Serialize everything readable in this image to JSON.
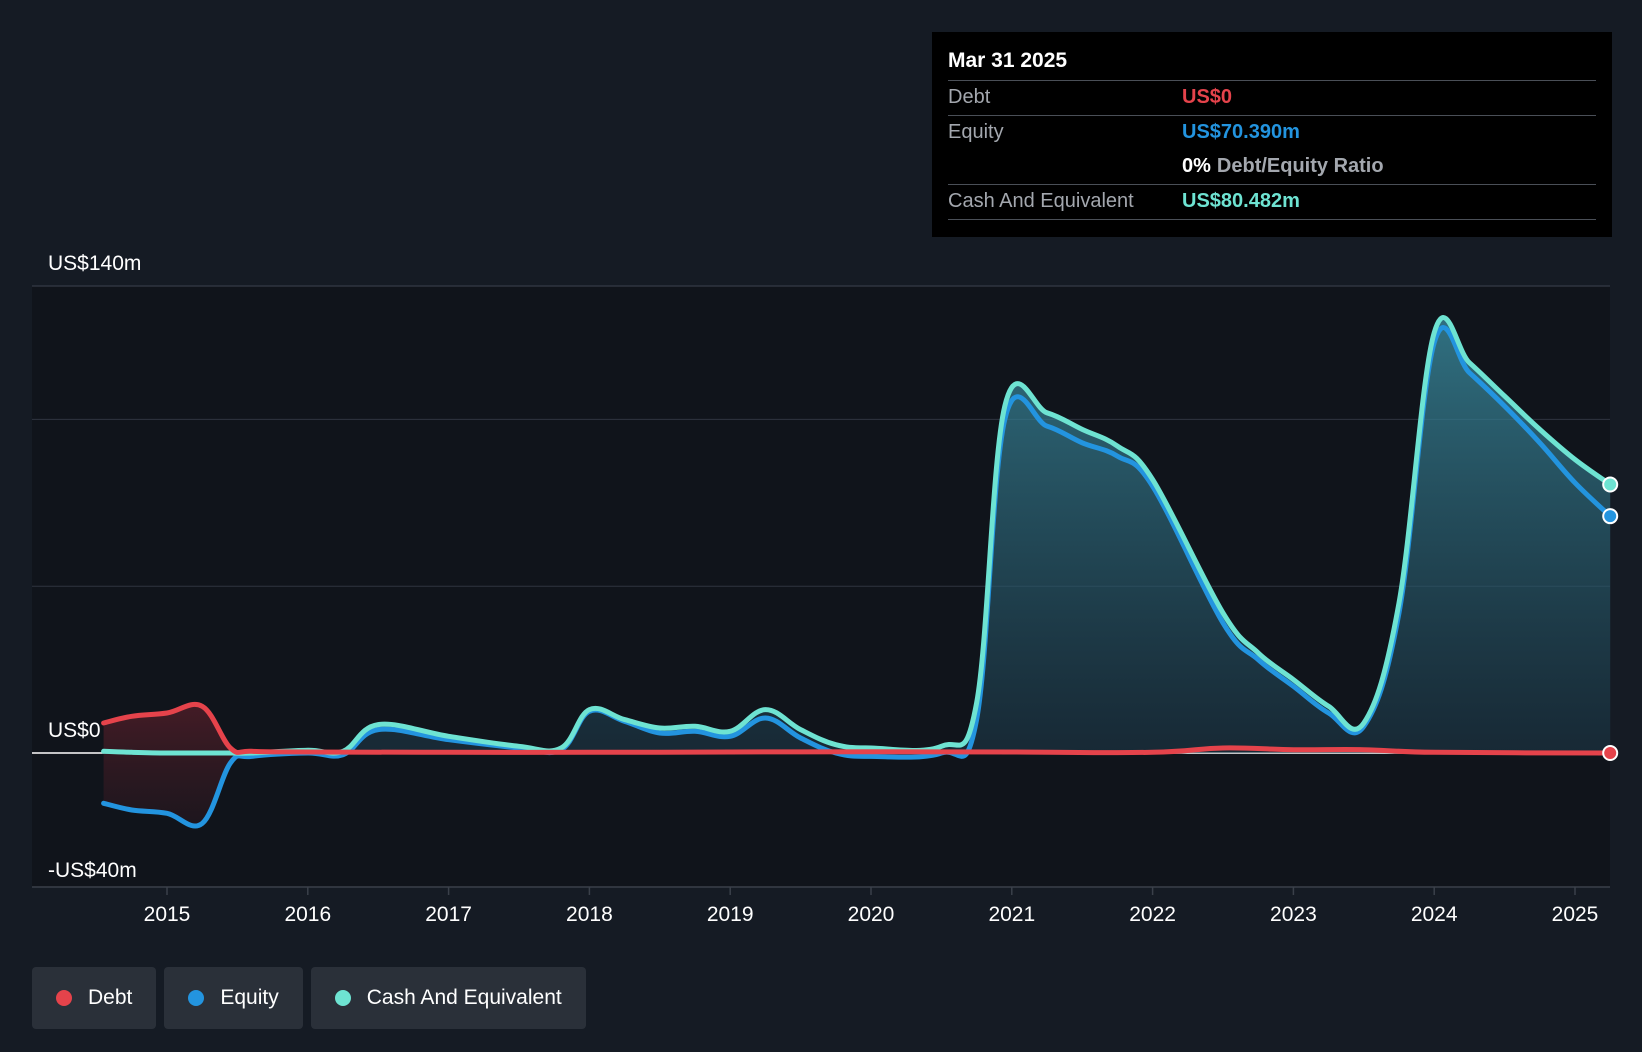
{
  "colors": {
    "debt": "#e5434b",
    "equity": "#2394df",
    "cash": "#6ee3d2",
    "background": "#151b24",
    "plot_background": "#10141b"
  },
  "tooltip": {
    "date": "Mar 31 2025",
    "debt_label": "Debt",
    "debt_value": "US$0",
    "equity_label": "Equity",
    "equity_value": "US$70.390m",
    "ratio_percent": "0%",
    "ratio_label": "Debt/Equity Ratio",
    "cash_label": "Cash And Equivalent",
    "cash_value": "US$80.482m"
  },
  "legend": {
    "items": [
      {
        "label": "Debt",
        "color": "#e5434b"
      },
      {
        "label": "Equity",
        "color": "#2394df"
      },
      {
        "label": "Cash And Equivalent",
        "color": "#6ee3d2"
      }
    ]
  },
  "chart_data": {
    "type": "area",
    "y_unit": "US$ millions",
    "ylim": [
      -40,
      140
    ],
    "y_tick_labels": [
      {
        "value": 140,
        "label": "US$140m"
      },
      {
        "value": 0,
        "label": "US$0"
      },
      {
        "value": -40,
        "label": "-US$40m"
      }
    ],
    "y_gridlines": [
      140,
      100,
      50
    ],
    "xlim": [
      2014.1,
      2025.3
    ],
    "x_tick_labels": [
      "2015",
      "2016",
      "2017",
      "2018",
      "2019",
      "2020",
      "2021",
      "2022",
      "2023",
      "2024",
      "2025"
    ],
    "x_tick_values": [
      2015,
      2016,
      2017,
      2018,
      2019,
      2020,
      2021,
      2022,
      2023,
      2024,
      2025
    ],
    "grid": true,
    "legend_position": "bottom-left",
    "series": [
      {
        "name": "Debt",
        "color": "#e5434b",
        "x": [
          2014.55,
          2014.75,
          2015.0,
          2015.25,
          2015.45,
          2015.6,
          2016.0,
          2017.0,
          2018.0,
          2019.0,
          2020.0,
          2021.0,
          2022.0,
          2022.5,
          2023.0,
          2023.5,
          2024.0,
          2025.25
        ],
        "values": [
          9,
          11,
          12,
          14,
          1.5,
          0.5,
          0.3,
          0.2,
          0.2,
          0.3,
          0.4,
          0.3,
          0.2,
          1.5,
          1.0,
          1.0,
          0.2,
          0
        ]
      },
      {
        "name": "Equity",
        "color": "#2394df",
        "x": [
          2014.55,
          2014.75,
          2015.0,
          2015.25,
          2015.45,
          2015.6,
          2016.0,
          2016.25,
          2016.5,
          2017.0,
          2017.5,
          2017.8,
          2018.0,
          2018.25,
          2018.5,
          2018.75,
          2019.0,
          2019.25,
          2019.5,
          2019.75,
          2020.0,
          2020.5,
          2020.75,
          2020.95,
          2021.25,
          2021.5,
          2021.75,
          2022.0,
          2022.5,
          2022.75,
          2023.0,
          2023.25,
          2023.5,
          2023.75,
          2024.0,
          2024.25,
          2024.5,
          2024.75,
          2025.0,
          2025.25
        ],
        "values": [
          -15,
          -17,
          -18,
          -21,
          -3,
          -1,
          0,
          -0.5,
          7,
          4,
          1.5,
          1,
          12.5,
          9.5,
          6,
          6.5,
          5,
          10.5,
          4.5,
          0,
          -1,
          0,
          10,
          100,
          98,
          93,
          89,
          80,
          39,
          28,
          20,
          12,
          8,
          42,
          123,
          114,
          104,
          93,
          81,
          71
        ]
      },
      {
        "name": "Cash And Equivalent",
        "color": "#6ee3d2",
        "x": [
          2014.55,
          2014.75,
          2015.0,
          2015.25,
          2015.45,
          2015.6,
          2016.0,
          2016.25,
          2016.5,
          2017.0,
          2017.5,
          2017.8,
          2018.0,
          2018.25,
          2018.5,
          2018.75,
          2019.0,
          2019.25,
          2019.5,
          2019.75,
          2020.0,
          2020.5,
          2020.75,
          2020.95,
          2021.25,
          2021.5,
          2021.75,
          2022.0,
          2022.5,
          2022.75,
          2023.0,
          2023.25,
          2023.5,
          2023.75,
          2024.0,
          2024.25,
          2024.5,
          2024.75,
          2025.0,
          2025.25
        ],
        "values": [
          0.5,
          0.2,
          0,
          0,
          0,
          0,
          0.8,
          0.5,
          8.5,
          5,
          2,
          1.5,
          13,
          10,
          7.5,
          8,
          6.5,
          13,
          7,
          2.5,
          1.5,
          2,
          15,
          104,
          102,
          97,
          92,
          82,
          42,
          30,
          22,
          14,
          9,
          45,
          126,
          117,
          107,
          97,
          88,
          80.5
        ]
      }
    ]
  }
}
